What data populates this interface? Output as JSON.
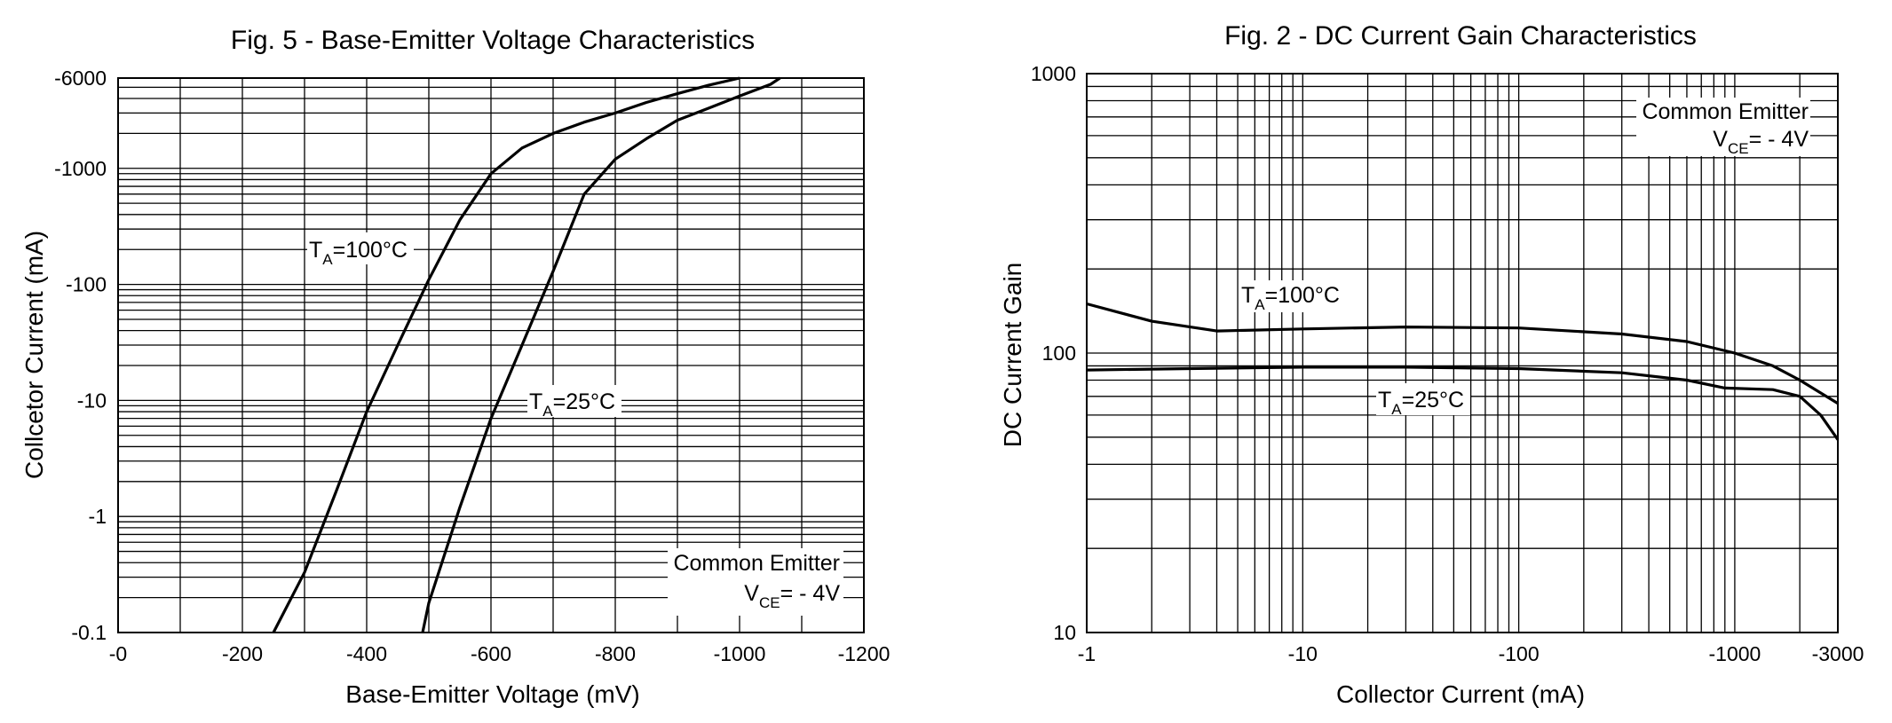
{
  "colors": {
    "background": "#ffffff",
    "grid": "#000000",
    "curve": "#000000"
  },
  "chart_data": [
    {
      "type": "line",
      "title": "Fig. 5 - Base-Emitter Voltage Characteristics",
      "xlabel": "Base-Emitter Voltage (mV)",
      "ylabel": "Collcetor Current (mA)",
      "x_scale": "linear",
      "y_scale": "log",
      "xlim": [
        0,
        -1200
      ],
      "ylim": [
        -0.1,
        -6000
      ],
      "xticks": [
        "-0",
        "-200",
        "-400",
        "-600",
        "-800",
        "-1000",
        "-1200"
      ],
      "yticks": [
        "-0.1",
        "-1",
        "-10",
        "-100",
        "-1000",
        "-6000"
      ],
      "grid": true,
      "series": [
        {
          "name": "TA=100°C",
          "label_main": "T",
          "label_sub": "A",
          "label_rest": "=100°C",
          "x": [
            -250,
            -300,
            -350,
            -400,
            -450,
            -500,
            -550,
            -600,
            -650,
            -700,
            -750,
            -800,
            -850,
            -900,
            -950,
            -1000
          ],
          "y": [
            -0.1,
            -0.33,
            -1.6,
            -8,
            -30,
            -110,
            -360,
            -900,
            -1500,
            -2000,
            -2500,
            -3000,
            -3700,
            -4400,
            -5200,
            -6000
          ]
        },
        {
          "name": "TA=25°C",
          "label_main": "T",
          "label_sub": "A",
          "label_rest": "=25°C",
          "x": [
            -490,
            -500,
            -550,
            -600,
            -650,
            -700,
            -750,
            -800,
            -850,
            -900,
            -950,
            -1000,
            -1050,
            -1065
          ],
          "y": [
            -0.1,
            -0.18,
            -1.2,
            -7,
            -30,
            -130,
            -600,
            -1200,
            -1800,
            -2600,
            -3300,
            -4200,
            -5300,
            -6000
          ]
        }
      ],
      "annotation": {
        "line1": "Common Emitter",
        "line2_main": "V",
        "line2_sub": "CE",
        "line2_rest": "= - 4V"
      }
    },
    {
      "type": "line",
      "title": "Fig. 2 - DC Current Gain Characteristics",
      "xlabel": "Collector Current (mA)",
      "ylabel": "DC Current Gain",
      "x_scale": "log",
      "y_scale": "log",
      "xlim": [
        -1,
        -3000
      ],
      "ylim": [
        10,
        1000
      ],
      "xticks": [
        "-1",
        "-10",
        "-100",
        "-1000",
        "-3000"
      ],
      "yticks": [
        "10",
        "100",
        "1000"
      ],
      "grid": true,
      "series": [
        {
          "name": "TA=100°C",
          "label_main": "T",
          "label_sub": "A",
          "label_rest": "=100°C",
          "x": [
            -1,
            -2,
            -4,
            -10,
            -30,
            -100,
            -300,
            -600,
            -1000,
            -1500,
            -2000,
            -3000
          ],
          "y": [
            150,
            130,
            120,
            122,
            124,
            123,
            117,
            110,
            100,
            90,
            80,
            66
          ]
        },
        {
          "name": "TA=25°C",
          "label_main": "T",
          "label_sub": "A",
          "label_rest": "=25°C",
          "x": [
            -1,
            -3,
            -10,
            -30,
            -100,
            -300,
            -600,
            -900,
            -1500,
            -2000,
            -2500,
            -3000
          ],
          "y": [
            87,
            88,
            89,
            89,
            88,
            85,
            80,
            75,
            74,
            70,
            60,
            49
          ]
        }
      ],
      "annotation": {
        "line1": "Common Emitter",
        "line2_main": "V",
        "line2_sub": "CE",
        "line2_rest": "= - 4V"
      }
    }
  ]
}
